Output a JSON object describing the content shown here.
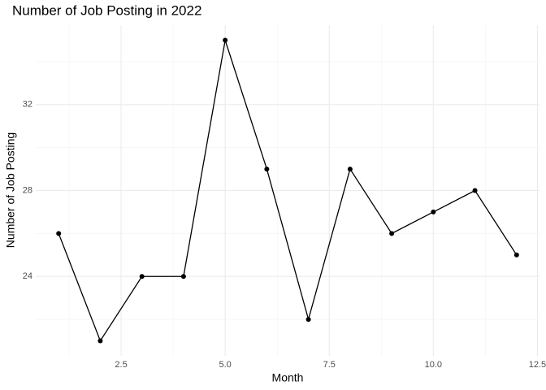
{
  "chart_data": {
    "type": "line",
    "title": "Number of Job Posting in 2022",
    "x_label": "Month",
    "y_label": "Number of Job Posting",
    "x": [
      1,
      2,
      3,
      4,
      5,
      6,
      7,
      8,
      9,
      10,
      11,
      12
    ],
    "values": [
      26,
      21,
      24,
      24,
      35,
      29,
      22,
      29,
      26,
      27,
      28,
      25
    ],
    "color": "#000000",
    "xlim": [
      0.45,
      12.55
    ],
    "ylim": [
      20.3,
      35.7
    ],
    "xticks": [
      {
        "value": 2.5,
        "label": "2.5"
      },
      {
        "value": 5,
        "label": "5.0"
      },
      {
        "value": 7.5,
        "label": "7.5"
      },
      {
        "value": 10,
        "label": "10.0"
      },
      {
        "value": 12.5,
        "label": "12.5"
      }
    ],
    "yticks": [
      24,
      28,
      32
    ],
    "minor_xticks": [
      1.25,
      3.75,
      6.25,
      8.75,
      11.25
    ],
    "minor_yticks": [
      22,
      26,
      30,
      34
    ],
    "grid": true
  }
}
